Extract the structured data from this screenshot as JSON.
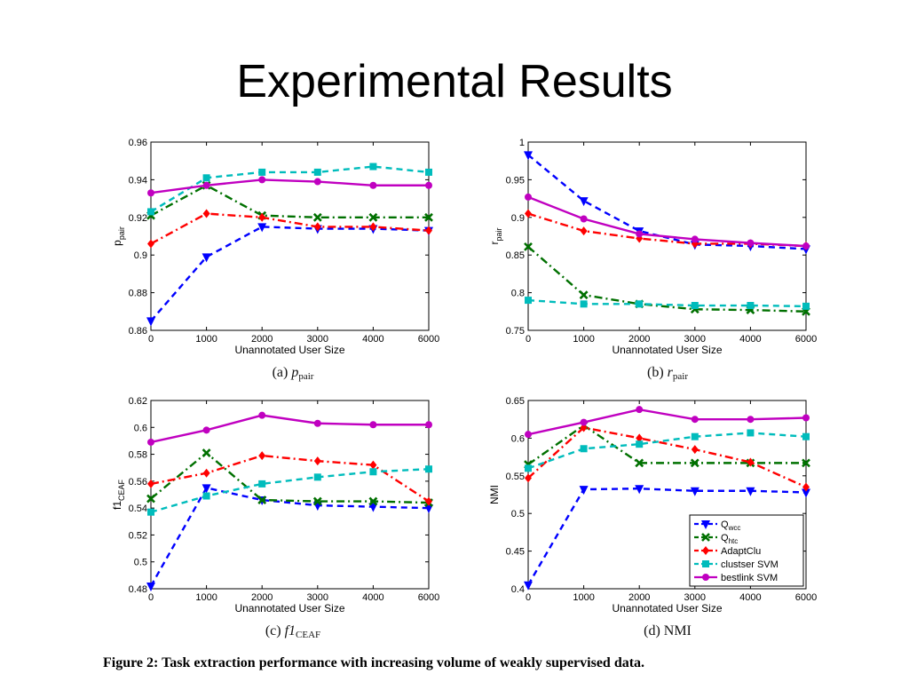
{
  "slide": {
    "title": "Experimental Results"
  },
  "figure_caption": "Figure 2: Task extraction performance with increasing volume of weakly supervised data.",
  "series_styles": [
    {
      "color": "#0000ff",
      "marker": "triangle-down",
      "dash": "7,5"
    },
    {
      "color": "#007000",
      "marker": "x",
      "dash": "9,4,2,4"
    },
    {
      "color": "#ff0000",
      "marker": "diamond",
      "dash": "9,4,2,4"
    },
    {
      "color": "#00bcbc",
      "marker": "square",
      "dash": "7,5"
    },
    {
      "color": "#c000c0",
      "marker": "circle",
      "dash": ""
    }
  ],
  "chart_data": [
    {
      "type": "line",
      "caption_main": "(a) ",
      "caption_math": "p",
      "caption_sub": "pair",
      "xlabel": "Unannotated User Size",
      "ylabel": "p",
      "ylabel_sub": "pair",
      "x": [
        "0",
        "1000",
        "2000",
        "3000",
        "4000",
        "6000"
      ],
      "ylim": [
        0.86,
        0.96
      ],
      "yticks": [
        "0.86",
        "0.88",
        "0.9",
        "0.92",
        "0.94",
        "0.96"
      ],
      "series": [
        {
          "values": [
            0.865,
            0.899,
            0.915,
            0.914,
            0.914,
            0.913
          ]
        },
        {
          "values": [
            0.921,
            0.937,
            0.921,
            0.92,
            0.92,
            0.92
          ]
        },
        {
          "values": [
            0.906,
            0.922,
            0.92,
            0.915,
            0.915,
            0.913
          ]
        },
        {
          "values": [
            0.923,
            0.941,
            0.944,
            0.944,
            0.947,
            0.944
          ]
        },
        {
          "values": [
            0.933,
            0.937,
            0.94,
            0.939,
            0.937,
            0.937
          ]
        }
      ]
    },
    {
      "type": "line",
      "caption_main": "(b) ",
      "caption_math": "r",
      "caption_sub": "pair",
      "xlabel": "Unannotated User Size",
      "ylabel": "r",
      "ylabel_sub": "pair",
      "x": [
        "0",
        "1000",
        "2000",
        "3000",
        "4000",
        "6000"
      ],
      "ylim": [
        0.75,
        1.0
      ],
      "yticks": [
        "0.75",
        "0.8",
        "0.85",
        "0.9",
        "0.95",
        "1"
      ],
      "series": [
        {
          "values": [
            0.983,
            0.922,
            0.882,
            0.864,
            0.862,
            0.858
          ]
        },
        {
          "values": [
            0.861,
            0.797,
            0.785,
            0.778,
            0.777,
            0.775
          ]
        },
        {
          "values": [
            0.905,
            0.882,
            0.872,
            0.865,
            0.865,
            0.862
          ]
        },
        {
          "values": [
            0.79,
            0.785,
            0.785,
            0.783,
            0.783,
            0.782
          ]
        },
        {
          "values": [
            0.927,
            0.898,
            0.878,
            0.871,
            0.866,
            0.862
          ]
        }
      ]
    },
    {
      "type": "line",
      "caption_main": "(c) ",
      "caption_math": "f1",
      "caption_sub": "CEAF",
      "xlabel": "Unannotated User Size",
      "ylabel": "f1",
      "ylabel_sub": "CEAF",
      "x": [
        "0",
        "1000",
        "2000",
        "3000",
        "4000",
        "6000"
      ],
      "ylim": [
        0.48,
        0.62
      ],
      "yticks": [
        "0.48",
        "0.5",
        "0.52",
        "0.54",
        "0.56",
        "0.58",
        "0.6",
        "0.62"
      ],
      "series": [
        {
          "values": [
            0.482,
            0.555,
            0.546,
            0.542,
            0.541,
            0.54
          ]
        },
        {
          "values": [
            0.547,
            0.581,
            0.546,
            0.545,
            0.545,
            0.544
          ]
        },
        {
          "values": [
            0.558,
            0.566,
            0.579,
            0.575,
            0.572,
            0.545
          ]
        },
        {
          "values": [
            0.537,
            0.549,
            0.558,
            0.563,
            0.567,
            0.569
          ]
        },
        {
          "values": [
            0.589,
            0.598,
            0.609,
            0.603,
            0.602,
            0.602
          ]
        }
      ]
    },
    {
      "type": "line",
      "caption_main": "(d) NMI",
      "caption_math": "",
      "caption_sub": "",
      "xlabel": "Unannotated User Size",
      "ylabel": "NMI",
      "ylabel_sub": "",
      "x": [
        "0",
        "1000",
        "2000",
        "3000",
        "4000",
        "6000"
      ],
      "ylim": [
        0.4,
        0.65
      ],
      "yticks": [
        "0.4",
        "0.45",
        "0.5",
        "0.55",
        "0.6",
        "0.65"
      ],
      "legend": {
        "position": "lower-right",
        "entries": [
          {
            "name": "Q",
            "sub": "wcc"
          },
          {
            "name": "Q",
            "sub": "htc"
          },
          {
            "name": "AdaptClu",
            "sub": ""
          },
          {
            "name": "clustser SVM",
            "sub": ""
          },
          {
            "name": "bestlink SVM",
            "sub": ""
          }
        ]
      },
      "series": [
        {
          "values": [
            0.405,
            0.532,
            0.533,
            0.53,
            0.53,
            0.528
          ]
        },
        {
          "values": [
            0.565,
            0.617,
            0.567,
            0.567,
            0.567,
            0.567
          ]
        },
        {
          "values": [
            0.547,
            0.614,
            0.6,
            0.585,
            0.568,
            0.535
          ]
        },
        {
          "values": [
            0.56,
            0.586,
            0.592,
            0.602,
            0.607,
            0.602
          ]
        },
        {
          "values": [
            0.605,
            0.621,
            0.638,
            0.625,
            0.625,
            0.627
          ]
        }
      ]
    }
  ]
}
